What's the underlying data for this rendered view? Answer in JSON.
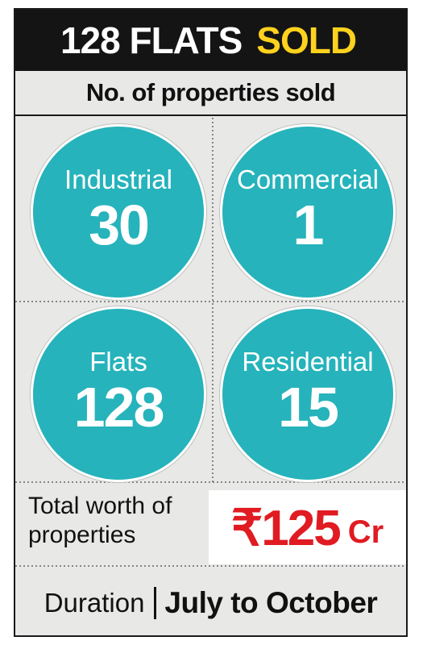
{
  "headline": {
    "text": "128 FLATS",
    "accent": "SOLD"
  },
  "subtitle": "No. of properties sold",
  "chart_data": {
    "type": "bubble-grid",
    "title": "No. of properties sold",
    "categories": [
      "Industrial",
      "Commercial",
      "Flats",
      "Residential"
    ],
    "values": [
      30,
      1,
      128,
      15
    ],
    "color": "#26b3bb"
  },
  "worth": {
    "label": "Total worth of properties",
    "currency_symbol": "₹",
    "amount": "125",
    "unit": "Cr",
    "color": "#e01b22"
  },
  "duration": {
    "label": "Duration",
    "value": "July to October"
  },
  "colors": {
    "headline_bg": "#141414",
    "accent": "#ffd21e",
    "panel_bg": "#e8e8e6"
  }
}
